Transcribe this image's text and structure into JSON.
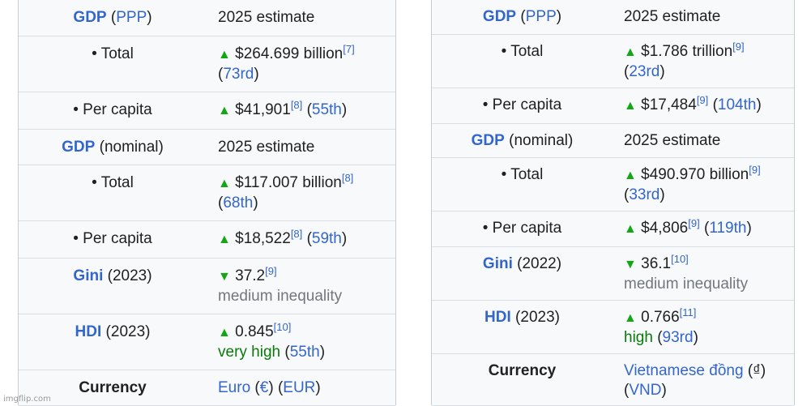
{
  "left": {
    "gdp_ppp": {
      "link": "GDP",
      "open_paren": "(",
      "ppp_link": "PPP",
      "close_paren": ")",
      "value": "2025 estimate"
    },
    "ppp_total": {
      "label": "• Total",
      "arrow": "▲",
      "amount": "$264.699 billion",
      "ref": "[7]",
      "rank_open": "(",
      "rank": "73rd",
      "rank_close": ")"
    },
    "ppp_per_capita": {
      "label": "• Per capita",
      "arrow": "▲",
      "amount": "$41,901",
      "ref": "[8]",
      "rank_open": "(",
      "rank": "55th",
      "rank_close": ")"
    },
    "gdp_nominal": {
      "link": "GDP",
      "text": "(nominal)",
      "value": "2025 estimate"
    },
    "nom_total": {
      "label": "• Total",
      "arrow": "▲",
      "amount": "$117.007 billion",
      "ref": "[8]",
      "rank_open": "(",
      "rank": "68th",
      "rank_close": ")"
    },
    "nom_per_capita": {
      "label": "• Per capita",
      "arrow": "▲",
      "amount": "$18,522",
      "ref": "[8]",
      "rank_open": "(",
      "rank": "59th",
      "rank_close": ")"
    },
    "gini": {
      "link": "Gini",
      "year": "(2023)",
      "arrow": "▼",
      "value": "37.2",
      "ref": "[9]",
      "note": "medium inequality"
    },
    "hdi": {
      "link": "HDI",
      "year": "(2023)",
      "arrow": "▲",
      "value": "0.845",
      "ref": "[10]",
      "note": "very high",
      "rank_open": "(",
      "rank": "55th",
      "rank_close": ")"
    },
    "currency": {
      "label": "Currency",
      "name": "Euro",
      "sym_open": "(",
      "symbol": "€",
      "sym_close": ")",
      "code_open": "(",
      "code": "EUR",
      "code_close": ")"
    }
  },
  "right": {
    "gdp_ppp": {
      "link": "GDP",
      "open_paren": "(",
      "ppp_link": "PPP",
      "close_paren": ")",
      "value": "2025 estimate"
    },
    "ppp_total": {
      "label": "• Total",
      "arrow": "▲",
      "amount": "$1.786 trillion",
      "ref": "[9]",
      "rank_open": "(",
      "rank": "23rd",
      "rank_close": ")"
    },
    "ppp_per_capita": {
      "label": "• Per capita",
      "arrow": "▲",
      "amount": "$17,484",
      "ref": "[9]",
      "rank_open": "(",
      "rank": "104th",
      "rank_close": ")"
    },
    "gdp_nominal": {
      "link": "GDP",
      "text": "(nominal)",
      "value": "2025 estimate"
    },
    "nom_total": {
      "label": "• Total",
      "arrow": "▲",
      "amount": "$490.970 billion",
      "ref": "[9]",
      "rank_open": "(",
      "rank": "33rd",
      "rank_close": ")"
    },
    "nom_per_capita": {
      "label": "• Per capita",
      "arrow": "▲",
      "amount": "$4,806",
      "ref": "[9]",
      "rank_open": "(",
      "rank": "119th",
      "rank_close": ")"
    },
    "gini": {
      "link": "Gini",
      "year": "(2022)",
      "arrow": "▼",
      "value": "36.1",
      "ref": "[10]",
      "note": "medium inequality"
    },
    "hdi": {
      "link": "HDI",
      "year": "(2023)",
      "arrow": "▲",
      "value": "0.766",
      "ref": "[11]",
      "note": "high",
      "rank_open": "(",
      "rank": "93rd",
      "rank_close": ")"
    },
    "currency": {
      "label": "Currency",
      "name": "Vietnamese đồng",
      "sym_open": "(",
      "symbol": "₫",
      "sym_close": ")",
      "code_open": "(",
      "code": "VND",
      "code_close": ")"
    }
  },
  "watermark": "imgflip.com",
  "colors": {
    "link": "#3366cc",
    "arrow_green": "#14a614",
    "muted": "#72777d",
    "panel_bg": "#f8f9fa"
  }
}
